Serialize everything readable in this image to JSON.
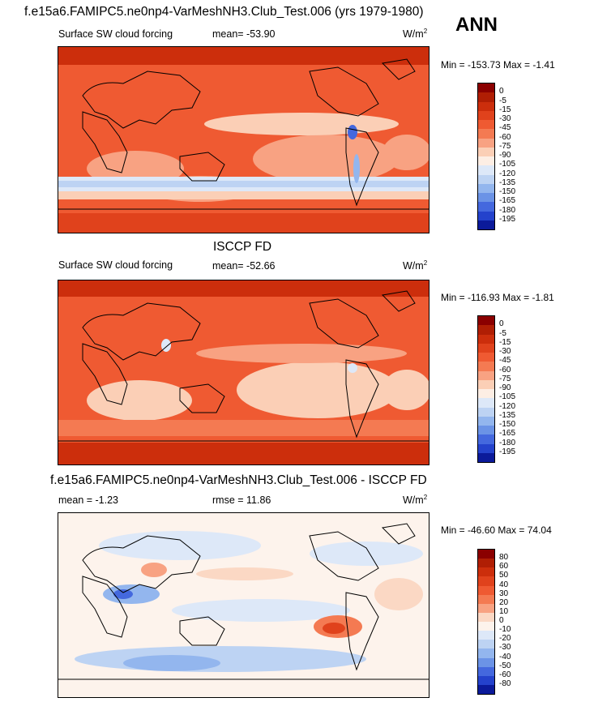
{
  "header": {
    "title": "f.e15a6.FAMIPC5.ne0np4-VarMeshNH3.Club_Test.006 (yrs 1979-1980)",
    "season": "ANN"
  },
  "panels": [
    {
      "id": "model",
      "title": "",
      "variable": "Surface SW cloud forcing",
      "stat1": "mean= -53.90",
      "stat2": "",
      "units_base": "W/m",
      "units_exp": "2",
      "minmax": "Min = -153.73 Max =  -1.41",
      "levels": [
        "0",
        "-5",
        "-15",
        "-30",
        "-45",
        "-60",
        "-75",
        "-90",
        "-105",
        "-120",
        "-135",
        "-150",
        "-165",
        "-180",
        "-195"
      ],
      "colors": [
        "#8b0000",
        "#b01e04",
        "#cc2e0c",
        "#e0421c",
        "#ef5a32",
        "#f47a52",
        "#f8a282",
        "#fbcfb6",
        "#fdeee4",
        "#dde8f8",
        "#bdd3f3",
        "#93b6ee",
        "#6b93e6",
        "#4468de",
        "#2442cc",
        "#0b1a9a"
      ]
    },
    {
      "id": "obs",
      "title": "ISCCP FD",
      "variable": "Surface SW cloud forcing",
      "stat1": "mean= -52.66",
      "stat2": "",
      "units_base": "W/m",
      "units_exp": "2",
      "minmax": "Min = -116.93 Max =  -1.81",
      "levels": [
        "0",
        "-5",
        "-15",
        "-30",
        "-45",
        "-60",
        "-75",
        "-90",
        "-105",
        "-120",
        "-135",
        "-150",
        "-165",
        "-180",
        "-195"
      ],
      "colors": [
        "#8b0000",
        "#b01e04",
        "#cc2e0c",
        "#e0421c",
        "#ef5a32",
        "#f47a52",
        "#f8a282",
        "#fbcfb6",
        "#fdeee4",
        "#dde8f8",
        "#bdd3f3",
        "#93b6ee",
        "#6b93e6",
        "#4468de",
        "#2442cc",
        "#0b1a9a"
      ]
    },
    {
      "id": "diff",
      "title": "f.e15a6.FAMIPC5.ne0np4-VarMeshNH3.Club_Test.006 - ISCCP FD",
      "variable": "",
      "stat1": "mean = -1.23",
      "stat2": "rmse = 11.86",
      "units_base": "W/m",
      "units_exp": "2",
      "minmax": "Min = -46.60 Max =  74.04",
      "levels": [
        "80",
        "60",
        "50",
        "40",
        "30",
        "20",
        "10",
        "0",
        "-10",
        "-20",
        "-30",
        "-40",
        "-50",
        "-60",
        "-80"
      ],
      "colors": [
        "#8b0000",
        "#b01e04",
        "#cc2e0c",
        "#e0421c",
        "#ef5a32",
        "#f47a52",
        "#f8a282",
        "#fbd8c4",
        "#fdf3ec",
        "#dde8f8",
        "#bdd3f3",
        "#93b6ee",
        "#6b93e6",
        "#4468de",
        "#2442cc",
        "#0b1a9a"
      ]
    }
  ]
}
